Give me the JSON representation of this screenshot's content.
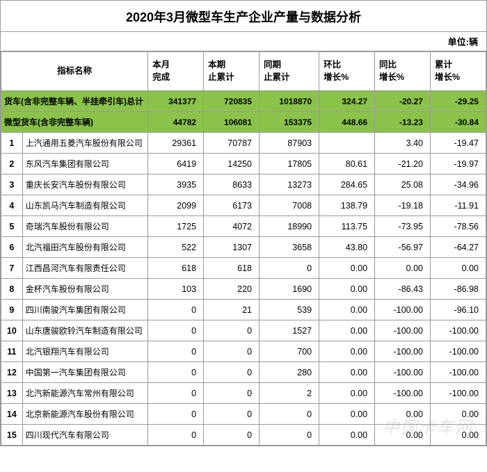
{
  "title": "2020年3月微型车生产企业产量与数据分析",
  "unit_label": "单位:辆",
  "columns": {
    "indicator": "指标名称",
    "month_done": "本月\n完成",
    "period_cum": "本期\n止累计",
    "same_period_cum": "同期\n止累计",
    "mom_growth": "环比\n增长%",
    "yoy_growth": "同比\n增长%",
    "cum_growth": "累计\n增长%"
  },
  "summary_rows": [
    {
      "label": "货车(含非完整车辆、半挂牵引车)总计",
      "month_done": "341377",
      "period_cum": "720835",
      "same_period_cum": "1018870",
      "mom": "324.27",
      "yoy": "-20.27",
      "cum": "-29.25"
    },
    {
      "label": "微型货车(含非完整车辆)",
      "month_done": "44782",
      "period_cum": "106081",
      "same_period_cum": "153375",
      "mom": "448.66",
      "yoy": "-13.23",
      "cum": "-30.84"
    }
  ],
  "rows": [
    {
      "idx": "1",
      "name": "上汽通用五菱汽车股份有限公司",
      "c1": "29361",
      "c2": "70787",
      "c3": "87903",
      "c4": "",
      "c5": "3.40",
      "c6": "-19.47"
    },
    {
      "idx": "2",
      "name": "东风汽车集团有限公司",
      "c1": "6419",
      "c2": "14250",
      "c3": "17805",
      "c4": "80.61",
      "c5": "-21.20",
      "c6": "-19.97"
    },
    {
      "idx": "3",
      "name": "重庆长安汽车股份有限公司",
      "c1": "3935",
      "c2": "8633",
      "c3": "13273",
      "c4": "284.65",
      "c5": "25.08",
      "c6": "-34.96"
    },
    {
      "idx": "4",
      "name": "山东凯马汽车制造有限公司",
      "c1": "2099",
      "c2": "6173",
      "c3": "7008",
      "c4": "138.79",
      "c5": "-19.18",
      "c6": "-11.91"
    },
    {
      "idx": "5",
      "name": "奇瑞汽车股份有限公司",
      "c1": "1725",
      "c2": "4072",
      "c3": "18990",
      "c4": "113.75",
      "c5": "-73.95",
      "c6": "-78.56"
    },
    {
      "idx": "6",
      "name": "北汽福田汽车股份有限公司",
      "c1": "522",
      "c2": "1307",
      "c3": "3658",
      "c4": "43.80",
      "c5": "-56.97",
      "c6": "-64.27"
    },
    {
      "idx": "7",
      "name": "江西昌河汽车有限责任公司",
      "c1": "618",
      "c2": "618",
      "c3": "0",
      "c4": "0.00",
      "c5": "0.00",
      "c6": "0.00"
    },
    {
      "idx": "8",
      "name": "金杯汽车股份有限公司",
      "c1": "103",
      "c2": "220",
      "c3": "1690",
      "c4": "0.00",
      "c5": "-86.43",
      "c6": "-86.98"
    },
    {
      "idx": "9",
      "name": "四川南骏汽车集团有限公司",
      "c1": "0",
      "c2": "21",
      "c3": "539",
      "c4": "0.00",
      "c5": "-100.00",
      "c6": "-96.10"
    },
    {
      "idx": "10",
      "name": "山东唐骏欧铃汽车制造有限公司",
      "c1": "0",
      "c2": "0",
      "c3": "1527",
      "c4": "0.00",
      "c5": "-100.00",
      "c6": "-100.00"
    },
    {
      "idx": "11",
      "name": "北汽银翔汽车有限公司",
      "c1": "0",
      "c2": "0",
      "c3": "700",
      "c4": "0.00",
      "c5": "-100.00",
      "c6": "-100.00"
    },
    {
      "idx": "12",
      "name": "中国第一汽车集团有限公司",
      "c1": "0",
      "c2": "0",
      "c3": "280",
      "c4": "0.00",
      "c5": "-100.00",
      "c6": "-100.00"
    },
    {
      "idx": "13",
      "name": "北汽新能源汽车常州有限公司",
      "c1": "0",
      "c2": "0",
      "c3": "2",
      "c4": "0.00",
      "c5": "-100.00",
      "c6": "-100.00"
    },
    {
      "idx": "14",
      "name": "北京新能源汽车股份有限公司",
      "c1": "0",
      "c2": "0",
      "c3": "0",
      "c4": "0.00",
      "c5": "0.00",
      "c6": "0.00"
    },
    {
      "idx": "15",
      "name": "四川现代汽车有限公司",
      "c1": "0",
      "c2": "0",
      "c3": "0",
      "c4": "0.00",
      "c5": "0.00",
      "c6": "0.00"
    }
  ],
  "watermark": "中国卡车网"
}
